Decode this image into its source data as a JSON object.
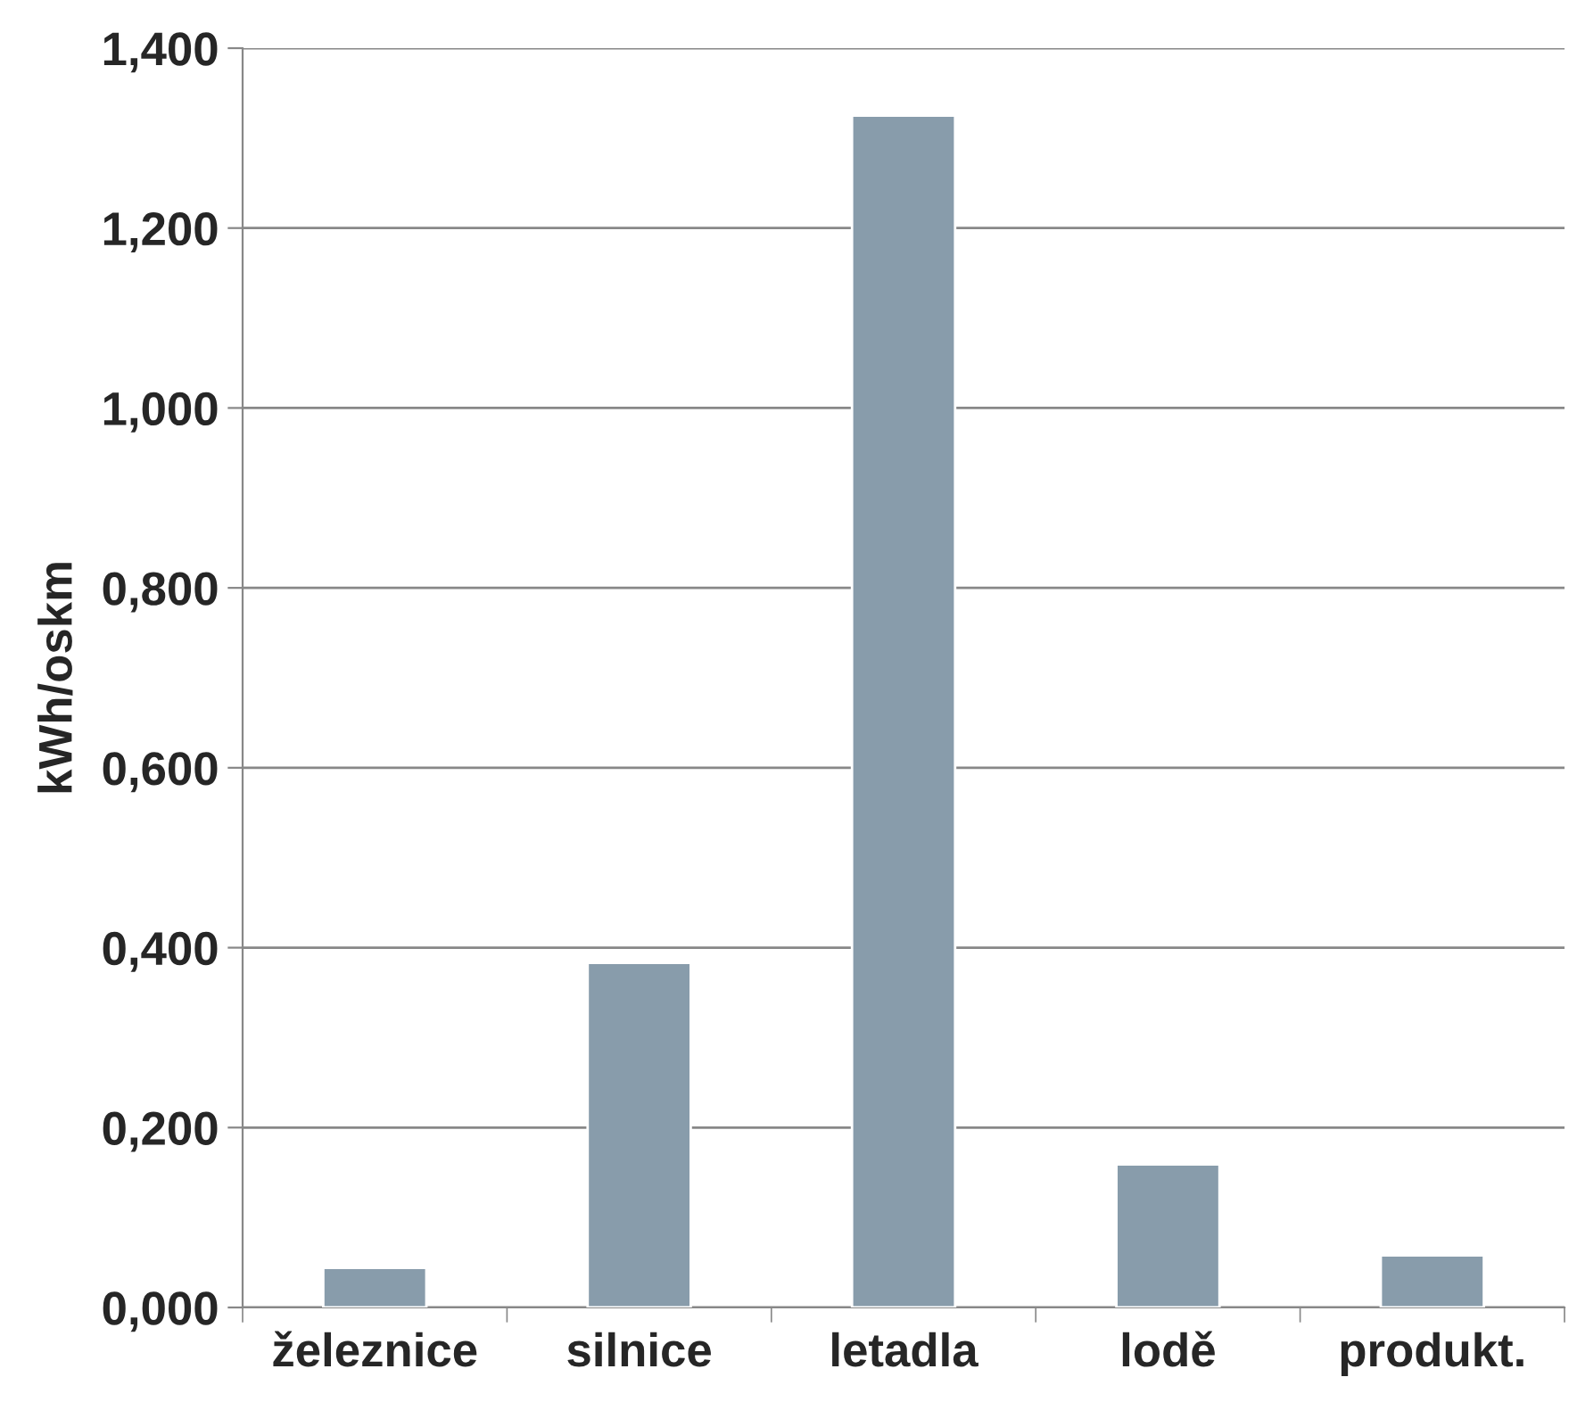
{
  "chart_data": {
    "type": "bar",
    "ylabel": "kWh/oskm",
    "categories": [
      "železnice",
      "silnice",
      "letadla",
      "lodě",
      "produkt."
    ],
    "values": [
      0.044,
      0.383,
      1.325,
      0.159,
      0.058
    ],
    "color": "#889cab",
    "ylim": [
      0,
      1.4
    ],
    "yticks": [
      {
        "value": 0,
        "label": "0,000"
      },
      {
        "value": 0.2,
        "label": "0,200"
      },
      {
        "value": 0.4,
        "label": "0,400"
      },
      {
        "value": 0.6,
        "label": "0,600"
      },
      {
        "value": 0.8,
        "label": "0,800"
      },
      {
        "value": 1.0,
        "label": "1,000"
      },
      {
        "value": 1.2,
        "label": "1,200"
      },
      {
        "value": 1.4,
        "label": "1,400"
      }
    ],
    "grid": "y",
    "legend": false
  }
}
